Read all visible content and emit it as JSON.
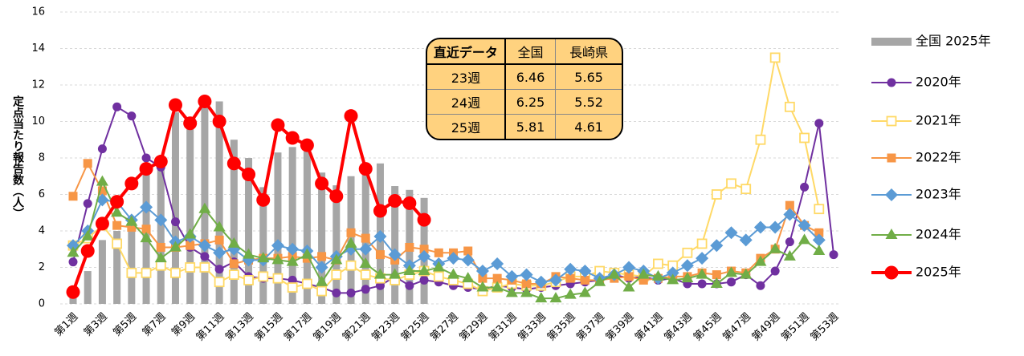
{
  "chart_data": {
    "type": "combo",
    "y_label": "定点当たり報告数（人）",
    "categories": [
      "第1週",
      null,
      "第3週",
      null,
      "第5週",
      null,
      "第7週",
      null,
      "第9週",
      null,
      "第11週",
      null,
      "第13週",
      null,
      "第15週",
      null,
      "第17週",
      null,
      "第19週",
      null,
      "第21週",
      null,
      "第23週",
      null,
      "第25週",
      null,
      "第27週",
      null,
      "第29週",
      null,
      "第31週",
      null,
      "第33週",
      null,
      "第35週",
      null,
      "第37週",
      null,
      "第39週",
      null,
      "第41週",
      null,
      "第43週",
      null,
      "第45週",
      null,
      "第47週",
      null,
      "第49週",
      null,
      "第51週",
      null,
      "第53週"
    ],
    "ylim": [
      0,
      16
    ],
    "yticks": [
      0,
      2,
      4,
      6,
      8,
      10,
      12,
      14,
      16
    ],
    "grid": true,
    "series": [
      {
        "name": "全国 2025年",
        "type": "bar",
        "color": "#a6a6a6",
        "values": [
          0.7,
          1.8,
          3.5,
          4.0,
          4.2,
          7.3,
          7.6,
          10.5,
          9.8,
          11.0,
          11.1,
          9.0,
          8.0,
          6.4,
          8.3,
          8.6,
          8.7,
          7.2,
          6.5,
          7.0,
          7.7,
          7.7,
          6.46,
          6.25,
          5.81,
          null,
          null,
          null,
          null,
          null,
          null,
          null,
          null,
          null,
          null,
          null,
          null,
          null,
          null,
          null,
          null,
          null,
          null,
          null,
          null,
          null,
          null,
          null,
          null,
          null,
          null,
          null,
          null
        ]
      },
      {
        "name": "2020年",
        "type": "line",
        "marker": "circle",
        "color": "#7030a0",
        "values": [
          2.3,
          5.5,
          8.5,
          10.8,
          10.3,
          8.0,
          7.5,
          4.5,
          3.1,
          2.6,
          1.9,
          2.3,
          1.5,
          1.4,
          1.4,
          1.3,
          1.1,
          0.9,
          0.6,
          0.6,
          0.8,
          1.0,
          1.5,
          1.0,
          1.3,
          1.2,
          1.0,
          0.9,
          0.8,
          1.0,
          0.9,
          0.8,
          0.9,
          1.0,
          1.1,
          1.2,
          1.3,
          1.6,
          1.4,
          1.5,
          1.3,
          1.4,
          1.1,
          1.1,
          1.1,
          1.2,
          1.6,
          1.0,
          1.8,
          3.4,
          6.4,
          9.9,
          2.7
        ]
      },
      {
        "name": "2021年",
        "type": "line",
        "marker": "open-square",
        "color": "#ffd966",
        "values": [
          3.2,
          3.6,
          4.3,
          3.3,
          1.7,
          1.7,
          2.1,
          1.7,
          2.0,
          2.0,
          1.2,
          1.6,
          1.3,
          1.5,
          1.4,
          0.9,
          1.1,
          0.7,
          1.6,
          2.1,
          1.6,
          1.4,
          1.3,
          1.6,
          1.8,
          1.5,
          1.3,
          1.1,
          0.7,
          0.9,
          1.1,
          1.0,
          1.0,
          1.2,
          1.5,
          1.5,
          1.8,
          1.7,
          1.6,
          1.5,
          2.2,
          2.1,
          2.8,
          3.3,
          6.0,
          6.6,
          6.3,
          9.0,
          13.5,
          10.8,
          9.1,
          5.2,
          null
        ]
      },
      {
        "name": "2022年",
        "type": "line",
        "marker": "square",
        "color": "#f79646",
        "values": [
          5.9,
          7.7,
          6.2,
          4.3,
          4.2,
          4.1,
          3.1,
          3.1,
          3.2,
          3.3,
          3.5,
          2.2,
          2.4,
          2.5,
          2.5,
          2.6,
          2.5,
          2.6,
          2.4,
          3.9,
          3.6,
          2.7,
          2.4,
          3.1,
          3.0,
          2.8,
          2.8,
          2.9,
          1.4,
          1.4,
          1.3,
          1.1,
          1.1,
          1.5,
          1.4,
          1.3,
          1.3,
          1.4,
          1.5,
          1.3,
          1.4,
          1.5,
          1.5,
          1.7,
          1.6,
          1.8,
          1.7,
          2.5,
          3.0,
          5.4,
          4.3,
          3.9,
          null
        ]
      },
      {
        "name": "2023年",
        "type": "line",
        "marker": "diamond",
        "color": "#5b9bd5",
        "values": [
          3.2,
          4.0,
          5.7,
          5.6,
          4.6,
          5.3,
          4.6,
          3.4,
          3.7,
          3.2,
          2.8,
          3.0,
          2.4,
          2.4,
          3.2,
          3.0,
          2.9,
          2.0,
          2.6,
          3.0,
          3.0,
          3.7,
          2.7,
          2.1,
          2.6,
          2.2,
          2.5,
          2.4,
          1.8,
          2.2,
          1.5,
          1.6,
          1.2,
          1.3,
          1.9,
          1.8,
          1.4,
          1.6,
          2.0,
          1.8,
          1.4,
          1.7,
          2.1,
          2.5,
          3.2,
          3.9,
          3.5,
          4.2,
          4.2,
          4.9,
          4.3,
          3.5,
          null
        ]
      },
      {
        "name": "2024年",
        "type": "line",
        "marker": "triangle",
        "color": "#70ad47",
        "values": [
          2.8,
          3.7,
          6.7,
          5.0,
          4.5,
          3.6,
          2.5,
          3.1,
          3.8,
          5.2,
          4.2,
          3.3,
          2.7,
          2.5,
          2.4,
          2.3,
          2.7,
          1.2,
          2.4,
          3.3,
          2.2,
          1.6,
          1.6,
          1.8,
          1.8,
          2.0,
          1.6,
          1.4,
          0.9,
          0.9,
          0.6,
          0.6,
          0.3,
          0.3,
          0.5,
          0.6,
          1.2,
          1.6,
          0.9,
          1.6,
          1.5,
          1.3,
          1.4,
          1.6,
          1.1,
          1.7,
          1.6,
          2.3,
          3.0,
          2.6,
          3.5,
          2.9,
          null
        ]
      },
      {
        "name": "2025年",
        "type": "line",
        "marker": "big-circle",
        "color": "#ff0000",
        "values": [
          0.65,
          2.9,
          4.4,
          5.6,
          6.6,
          7.4,
          7.8,
          10.9,
          9.9,
          11.1,
          10.0,
          7.7,
          7.1,
          5.7,
          9.8,
          9.1,
          8.7,
          6.6,
          5.9,
          10.3,
          7.4,
          5.1,
          5.65,
          5.52,
          4.61,
          null,
          null,
          null,
          null,
          null,
          null,
          null,
          null,
          null,
          null,
          null,
          null,
          null,
          null,
          null,
          null,
          null,
          null,
          null,
          null,
          null,
          null,
          null,
          null,
          null,
          null,
          null,
          null
        ]
      }
    ],
    "inset_table": {
      "header": [
        "直近データ",
        "全国",
        "長崎県"
      ],
      "rows": [
        [
          "23週",
          6.46,
          5.65
        ],
        [
          "24週",
          6.25,
          5.52
        ],
        [
          "25週",
          5.81,
          4.61
        ]
      ]
    }
  }
}
